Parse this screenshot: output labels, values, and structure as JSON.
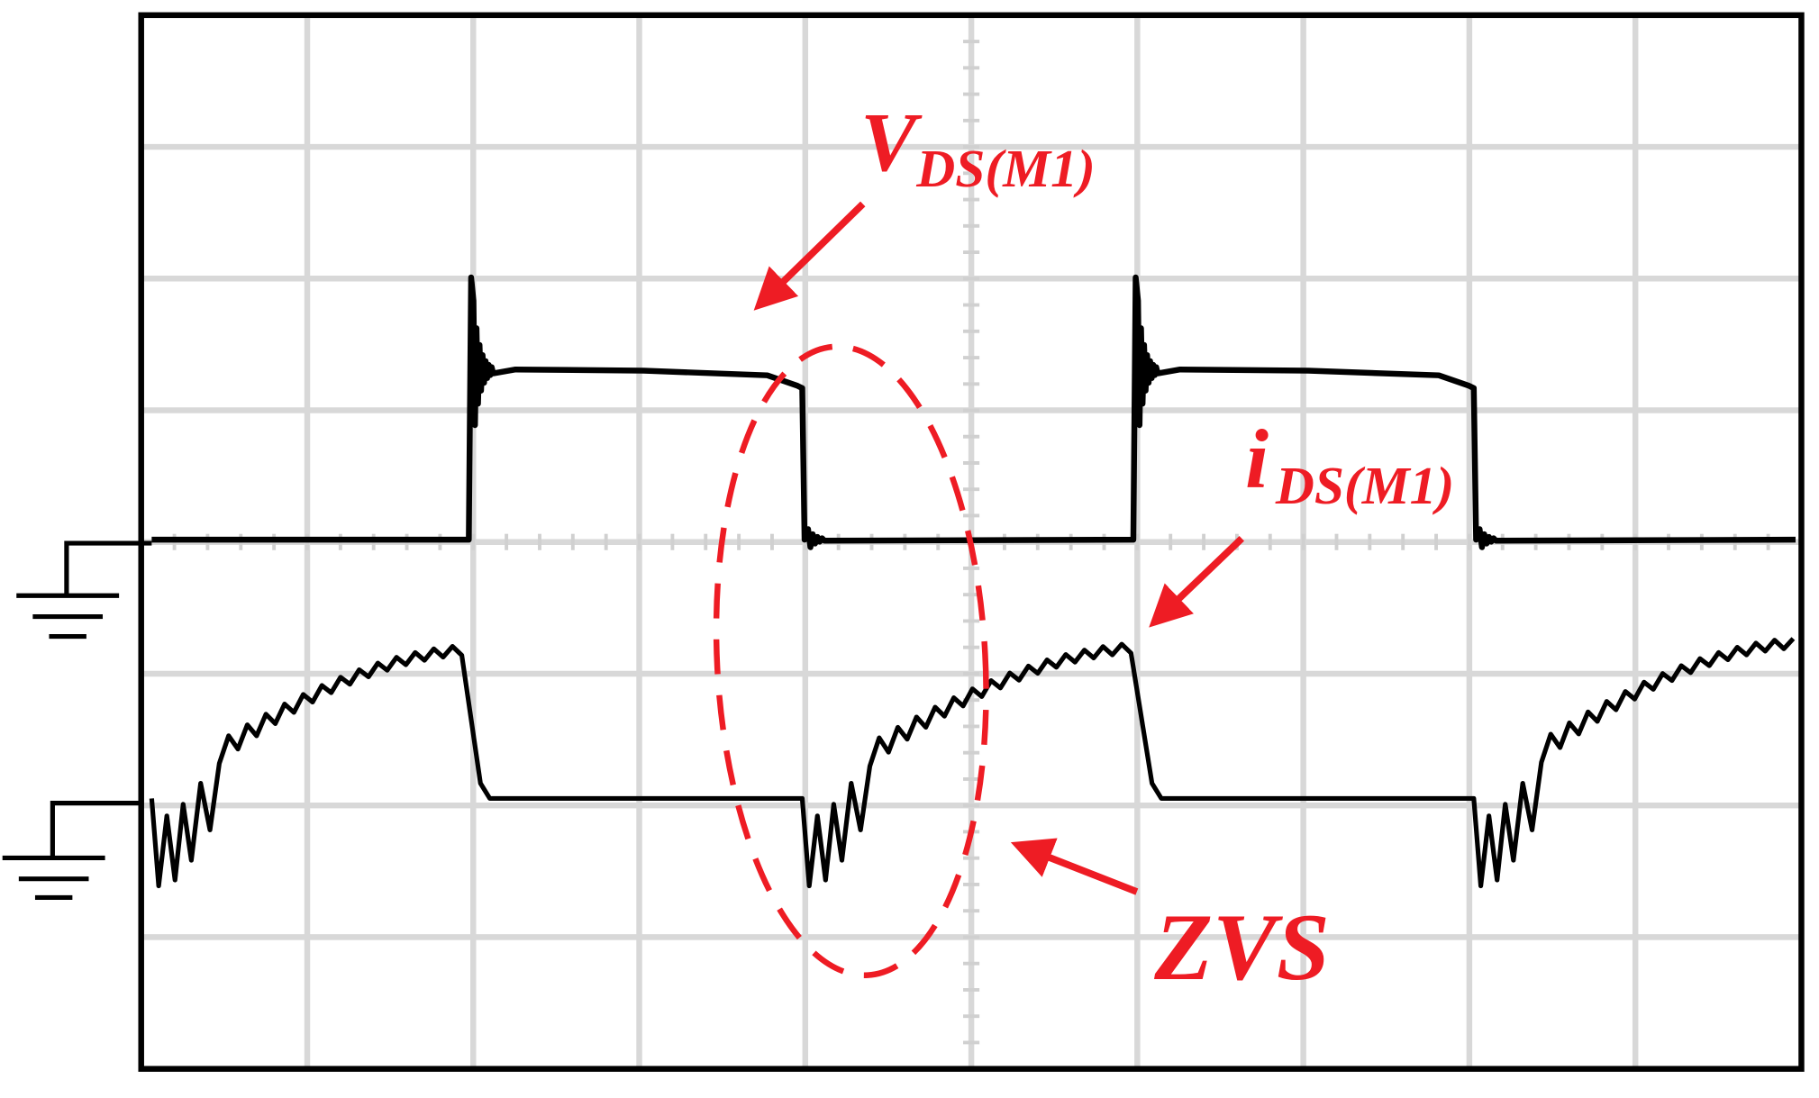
{
  "annotations": [
    {
      "text": "V",
      "subscript": "DS(M1)"
    },
    {
      "text": "i",
      "subscript": "DS(M1)"
    },
    {
      "text": "ZVS"
    }
  ]
}
